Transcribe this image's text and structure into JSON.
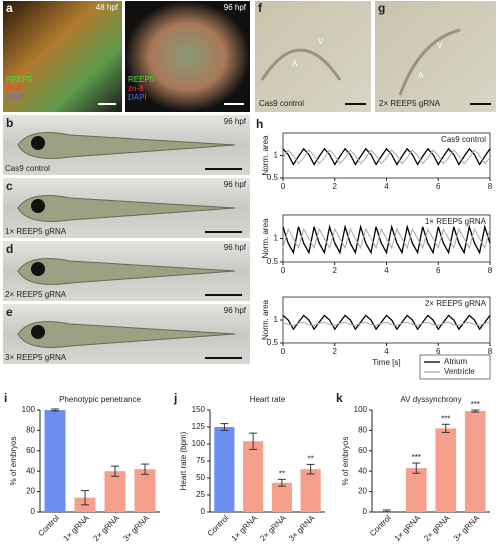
{
  "panel_a": {
    "letter": "a",
    "left": {
      "time": "48 hpf",
      "stains": [
        "REEP5",
        "zn-8",
        "DAPI"
      ]
    },
    "right": {
      "time": "96 hpf",
      "stains": [
        "REEP5",
        "zn-8",
        "DAPI"
      ]
    }
  },
  "fish": [
    {
      "letter": "b",
      "time": "96 hpf",
      "label": "Cas9 control"
    },
    {
      "letter": "c",
      "time": "96 hpf",
      "label": "1× REEP5 gRNA"
    },
    {
      "letter": "d",
      "time": "96 hpf",
      "label": "2× REEP5 gRNA"
    },
    {
      "letter": "e",
      "time": "96 hpf",
      "label": "3× REEP5 gRNA"
    }
  ],
  "panel_f": {
    "letter": "f",
    "labels": [
      "V",
      "A"
    ],
    "caption": "Cas9 control"
  },
  "panel_g": {
    "letter": "g",
    "labels": [
      "V",
      "A"
    ],
    "caption": "2× REEP5 gRNA"
  },
  "chart_data": [
    {
      "type": "line",
      "panel": "h",
      "annotation": "Cas9 control",
      "ylabel": "Norm. area",
      "xlim": [
        0,
        8
      ],
      "xticks": [
        0,
        2,
        4,
        6,
        8
      ],
      "ylim": [
        0.5,
        1.5
      ],
      "yticks": [
        0.5,
        1
      ],
      "x": [
        0,
        0.2,
        0.4,
        0.6,
        0.8,
        1,
        1.2,
        1.4,
        1.6,
        1.8,
        2,
        2.2,
        2.4,
        2.6,
        2.8,
        3,
        3.2,
        3.4,
        3.6,
        3.8,
        4,
        4.2,
        4.4,
        4.6,
        4.8,
        5,
        5.2,
        5.4,
        5.6,
        5.8,
        6,
        6.2,
        6.4,
        6.6,
        6.8,
        7,
        7.2,
        7.4,
        7.6,
        7.8,
        8
      ],
      "series": [
        {
          "name": "Atrium",
          "color": "#000000",
          "values": [
            1.15,
            1.02,
            0.8,
            0.98,
            1.15,
            1.02,
            0.8,
            0.98,
            1.15,
            1.02,
            0.8,
            0.98,
            1.15,
            1.02,
            0.8,
            0.98,
            1.15,
            1.02,
            0.8,
            0.98,
            1.15,
            1.02,
            0.8,
            0.98,
            1.15,
            1.02,
            0.8,
            0.98,
            1.15,
            1.02,
            0.8,
            0.98,
            1.15,
            1.02,
            0.8,
            0.98,
            1.15,
            1.02,
            0.8,
            0.98,
            1.15
          ]
        },
        {
          "name": "Ventricle",
          "color": "#aaaaaa",
          "values": [
            0.95,
            1.12,
            1.0,
            0.82,
            0.95,
            1.12,
            1.0,
            0.82,
            0.95,
            1.12,
            1.0,
            0.82,
            0.95,
            1.12,
            1.0,
            0.82,
            0.95,
            1.12,
            1.0,
            0.82,
            0.95,
            1.12,
            1.0,
            0.82,
            0.95,
            1.12,
            1.0,
            0.82,
            0.95,
            1.12,
            1.0,
            0.82,
            0.95,
            1.12,
            1.0,
            0.82,
            0.95,
            1.12,
            1.0,
            0.82,
            0.95
          ]
        }
      ]
    },
    {
      "type": "line",
      "annotation": "1× REEP5 gRNA",
      "ylabel": "Norm. area",
      "xlim": [
        0,
        8
      ],
      "xticks": [
        0,
        2,
        4,
        6,
        8
      ],
      "ylim": [
        0.5,
        1.5
      ],
      "yticks": [
        0.5,
        1
      ],
      "x": [
        0,
        0.2,
        0.4,
        0.6,
        0.8,
        1,
        1.2,
        1.4,
        1.6,
        1.8,
        2,
        2.2,
        2.4,
        2.6,
        2.8,
        3,
        3.2,
        3.4,
        3.6,
        3.8,
        4,
        4.2,
        4.4,
        4.6,
        4.8,
        5,
        5.2,
        5.4,
        5.6,
        5.8,
        6,
        6.2,
        6.4,
        6.6,
        6.8,
        7,
        7.2,
        7.4,
        7.6,
        7.8,
        8
      ],
      "series": [
        {
          "name": "Atrium",
          "color": "#000000",
          "values": [
            1.25,
            0.9,
            0.7,
            1.25,
            0.9,
            0.7,
            1.25,
            0.9,
            0.7,
            1.25,
            0.9,
            0.7,
            1.25,
            0.9,
            0.7,
            1.25,
            0.9,
            0.7,
            1.25,
            0.9,
            0.7,
            1.25,
            0.9,
            0.7,
            1.25,
            0.9,
            0.7,
            1.25,
            0.9,
            0.7,
            1.25,
            0.9,
            0.7,
            1.25,
            0.9,
            0.7,
            1.25,
            0.9,
            0.7,
            1.25,
            0.9
          ]
        },
        {
          "name": "Ventricle",
          "color": "#aaaaaa",
          "values": [
            0.8,
            1.2,
            1.0,
            0.8,
            1.2,
            1.0,
            0.8,
            1.2,
            1.0,
            0.8,
            1.2,
            1.0,
            0.8,
            1.2,
            1.0,
            0.8,
            1.2,
            1.0,
            0.8,
            1.2,
            1.0,
            0.8,
            1.2,
            1.0,
            0.8,
            1.2,
            1.0,
            0.8,
            1.2,
            1.0,
            0.8,
            1.2,
            1.0,
            0.8,
            1.2,
            1.0,
            0.8,
            1.2,
            1.0,
            0.8,
            1.2
          ]
        }
      ]
    },
    {
      "type": "line",
      "annotation": "2× REEP5 gRNA",
      "ylabel": "Norm. area",
      "xlabel": "Time [s]",
      "legend": "lower right",
      "xlim": [
        0,
        8
      ],
      "xticks": [
        0,
        2,
        4,
        6,
        8
      ],
      "ylim": [
        0.5,
        1.5
      ],
      "yticks": [
        0.5,
        1
      ],
      "x": [
        0,
        0.2,
        0.4,
        0.6,
        0.8,
        1,
        1.2,
        1.4,
        1.6,
        1.8,
        2,
        2.2,
        2.4,
        2.6,
        2.8,
        3,
        3.2,
        3.4,
        3.6,
        3.8,
        4,
        4.2,
        4.4,
        4.6,
        4.8,
        5,
        5.2,
        5.4,
        5.6,
        5.8,
        6,
        6.2,
        6.4,
        6.6,
        6.8,
        7,
        7.2,
        7.4,
        7.6,
        7.8,
        8
      ],
      "series": [
        {
          "name": "Atrium",
          "color": "#000000",
          "values": [
            1.1,
            1.0,
            0.8,
            0.95,
            1.1,
            1.0,
            0.8,
            0.95,
            1.1,
            1.0,
            0.8,
            0.95,
            1.1,
            1.0,
            0.8,
            0.95,
            1.1,
            1.0,
            0.8,
            0.95,
            1.1,
            1.0,
            0.8,
            0.95,
            1.1,
            1.0,
            0.8,
            0.95,
            1.1,
            1.0,
            0.8,
            0.95,
            1.1,
            1.0,
            0.8,
            0.95,
            1.1,
            1.0,
            0.8,
            0.95,
            1.1
          ]
        },
        {
          "name": "Ventricle",
          "color": "#aaaaaa",
          "values": [
            0.95,
            0.9,
            0.88,
            0.93,
            0.95,
            0.9,
            0.88,
            0.93,
            0.95,
            0.9,
            0.88,
            0.93,
            0.95,
            0.9,
            0.88,
            0.93,
            0.95,
            0.9,
            0.88,
            0.93,
            0.95,
            0.9,
            0.88,
            0.93,
            0.95,
            0.9,
            0.88,
            0.93,
            0.95,
            0.9,
            0.88,
            0.93,
            0.95,
            0.9,
            0.88,
            0.93,
            0.95,
            0.9,
            0.88,
            0.93,
            0.95
          ]
        }
      ]
    },
    {
      "type": "bar",
      "panel": "i",
      "title": "Phenotypic penetrance",
      "ylabel": "% of embryos",
      "categories": [
        "Control",
        "1× gRNA",
        "2× gRNA",
        "3× gRNA"
      ],
      "values": [
        100,
        14,
        40,
        42
      ],
      "errors": [
        1,
        7,
        5,
        5
      ],
      "colors": [
        "#6d8ff0",
        "#f4a08c",
        "#f4a08c",
        "#f4a08c"
      ],
      "ylim": [
        0,
        100
      ],
      "yticks": [
        0,
        20,
        40,
        60,
        80,
        100
      ]
    },
    {
      "type": "bar",
      "panel": "j",
      "title": "Heart rate",
      "ylabel": "Heart rate (bpm)",
      "categories": [
        "Control",
        "1× gRNA",
        "2× gRNA",
        "3× gRNA"
      ],
      "values": [
        125,
        104,
        43,
        63
      ],
      "errors": [
        5,
        12,
        5,
        7
      ],
      "significance": [
        null,
        null,
        "**",
        "**"
      ],
      "colors": [
        "#6d8ff0",
        "#f4a08c",
        "#f4a08c",
        "#f4a08c"
      ],
      "ylim": [
        0,
        150
      ],
      "yticks": [
        0,
        25,
        50,
        75,
        100,
        125,
        150
      ]
    },
    {
      "type": "bar",
      "panel": "k",
      "title": "AV dyssynchrony",
      "ylabel": "% of embryos",
      "categories": [
        "Control",
        "1× gRNA",
        "2× gRNA",
        "3× gRNA"
      ],
      "values": [
        1,
        43,
        82,
        99
      ],
      "errors": [
        1,
        5,
        4,
        1
      ],
      "significance": [
        null,
        "***",
        "***",
        "***"
      ],
      "colors": [
        "#6d8ff0",
        "#f4a08c",
        "#f4a08c",
        "#f4a08c"
      ],
      "ylim": [
        0,
        100
      ],
      "yticks": [
        0,
        20,
        40,
        60,
        80,
        100
      ]
    }
  ]
}
